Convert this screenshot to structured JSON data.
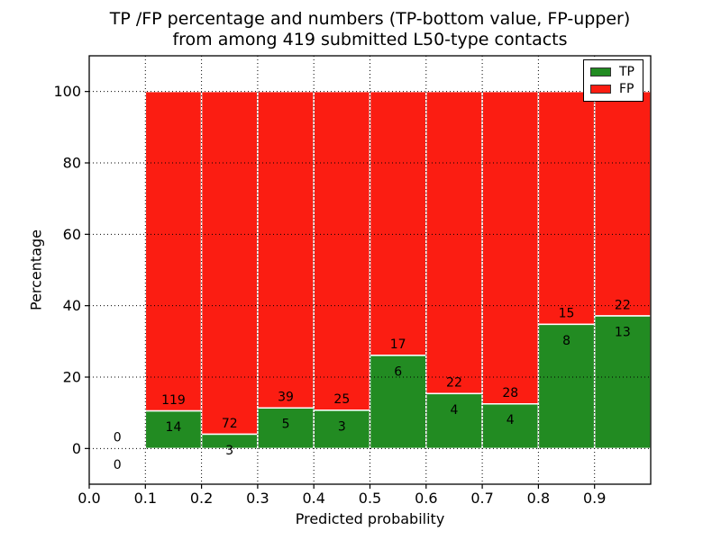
{
  "chart_data": {
    "type": "bar",
    "stacked": true,
    "title_line1": "TP /FP percentage and numbers (TP-bottom value, FP-upper)",
    "title_line2": "from among 419 submitted L50-type contacts",
    "xlabel": "Predicted probability",
    "ylabel": "Percentage",
    "xlim": [
      0.0,
      1.0
    ],
    "ylim": [
      -10,
      110
    ],
    "x_ticks": [
      {
        "value": 0.0,
        "label": "0.0"
      },
      {
        "value": 0.1,
        "label": "0.1"
      },
      {
        "value": 0.2,
        "label": "0.2"
      },
      {
        "value": 0.3,
        "label": "0.3"
      },
      {
        "value": 0.4,
        "label": "0.4"
      },
      {
        "value": 0.5,
        "label": "0.5"
      },
      {
        "value": 0.6,
        "label": "0.6"
      },
      {
        "value": 0.7,
        "label": "0.7"
      },
      {
        "value": 0.8,
        "label": "0.8"
      },
      {
        "value": 0.9,
        "label": "0.9"
      }
    ],
    "y_ticks": [
      {
        "value": 0,
        "label": "0"
      },
      {
        "value": 20,
        "label": "20"
      },
      {
        "value": 40,
        "label": "40"
      },
      {
        "value": 60,
        "label": "60"
      },
      {
        "value": 80,
        "label": "80"
      },
      {
        "value": 100,
        "label": "100"
      }
    ],
    "bins": [
      {
        "range": [
          0.0,
          0.1
        ],
        "tp": 0,
        "fp": 0
      },
      {
        "range": [
          0.1,
          0.2
        ],
        "tp": 14,
        "fp": 119
      },
      {
        "range": [
          0.2,
          0.3
        ],
        "tp": 3,
        "fp": 72
      },
      {
        "range": [
          0.3,
          0.4
        ],
        "tp": 5,
        "fp": 39
      },
      {
        "range": [
          0.4,
          0.5
        ],
        "tp": 3,
        "fp": 25
      },
      {
        "range": [
          0.5,
          0.6
        ],
        "tp": 6,
        "fp": 17
      },
      {
        "range": [
          0.6,
          0.7
        ],
        "tp": 4,
        "fp": 22
      },
      {
        "range": [
          0.7,
          0.8
        ],
        "tp": 4,
        "fp": 28
      },
      {
        "range": [
          0.8,
          0.9
        ],
        "tp": 8,
        "fp": 15
      },
      {
        "range": [
          0.9,
          1.0
        ],
        "tp": 13,
        "fp": 22
      }
    ],
    "legend": {
      "position": "upper right",
      "items": [
        {
          "label": "TP",
          "color": "#228b22"
        },
        {
          "label": "FP",
          "color": "#fb1d12"
        }
      ]
    },
    "colors": {
      "tp_bar": "#228b22",
      "fp_bar": "#fb1d12",
      "bar_edge": "#ffffff",
      "grid": "#000000",
      "axis": "#000000",
      "background": "#ffffff"
    },
    "grid": true
  }
}
